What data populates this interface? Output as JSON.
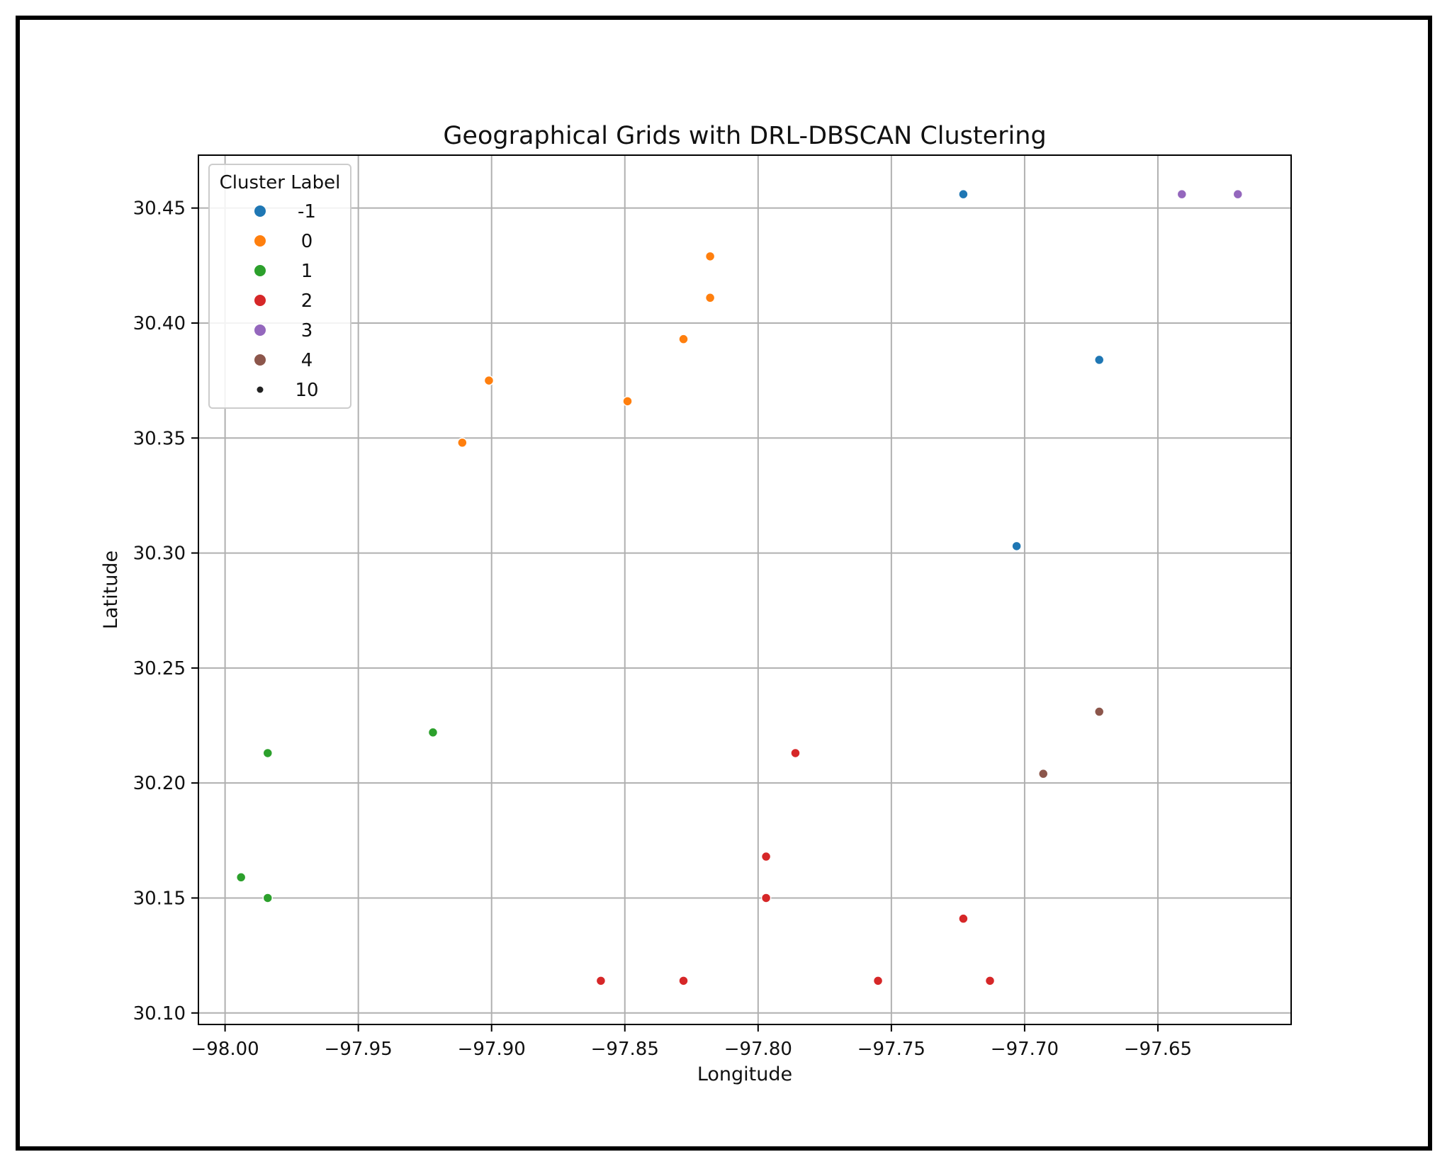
{
  "chart_data": {
    "type": "scatter",
    "title": "Geographical Grids with DRL-DBSCAN Clustering",
    "xlabel": "Longitude",
    "ylabel": "Latitude",
    "xlim": [
      -98.01,
      -97.6
    ],
    "ylim": [
      30.095,
      30.473
    ],
    "xticks": [
      -98.0,
      -97.95,
      -97.9,
      -97.85,
      -97.8,
      -97.75,
      -97.7,
      -97.65
    ],
    "xtick_labels": [
      "−98.00",
      "−97.95",
      "−97.90",
      "−97.85",
      "−97.80",
      "−97.75",
      "−97.70",
      "−97.65"
    ],
    "yticks": [
      30.1,
      30.15,
      30.2,
      30.25,
      30.3,
      30.35,
      30.4,
      30.45
    ],
    "ytick_labels": [
      "30.10",
      "30.15",
      "30.20",
      "30.25",
      "30.30",
      "30.35",
      "30.40",
      "30.45"
    ],
    "grid": true,
    "legend": {
      "title": "Cluster Label",
      "placement": "top-left",
      "entries": [
        {
          "label": "-1",
          "color": "#1f77b4"
        },
        {
          "label": "0",
          "color": "#ff7f0e"
        },
        {
          "label": "1",
          "color": "#2ca02c"
        },
        {
          "label": "2",
          "color": "#d62728"
        },
        {
          "label": "3",
          "color": "#9467bd"
        },
        {
          "label": "4",
          "color": "#8c564b"
        },
        {
          "label": "10",
          "color": "#222222",
          "size_marker": true
        }
      ]
    },
    "series": [
      {
        "name": "-1",
        "color": "#1f77b4",
        "points": [
          [
            -97.723,
            30.456
          ],
          [
            -97.672,
            30.384
          ],
          [
            -97.703,
            30.303
          ]
        ]
      },
      {
        "name": "0",
        "color": "#ff7f0e",
        "points": [
          [
            -97.818,
            30.429
          ],
          [
            -97.818,
            30.411
          ],
          [
            -97.828,
            30.393
          ],
          [
            -97.901,
            30.375
          ],
          [
            -97.849,
            30.366
          ],
          [
            -97.911,
            30.348
          ]
        ]
      },
      {
        "name": "1",
        "color": "#2ca02c",
        "points": [
          [
            -97.922,
            30.222
          ],
          [
            -97.984,
            30.213
          ],
          [
            -97.994,
            30.159
          ],
          [
            -97.984,
            30.15
          ]
        ]
      },
      {
        "name": "2",
        "color": "#d62728",
        "points": [
          [
            -97.786,
            30.213
          ],
          [
            -97.797,
            30.168
          ],
          [
            -97.797,
            30.15
          ],
          [
            -97.723,
            30.141
          ],
          [
            -97.859,
            30.114
          ],
          [
            -97.828,
            30.114
          ],
          [
            -97.755,
            30.114
          ],
          [
            -97.713,
            30.114
          ]
        ]
      },
      {
        "name": "3",
        "color": "#9467bd",
        "points": [
          [
            -97.641,
            30.456
          ],
          [
            -97.62,
            30.456
          ]
        ]
      },
      {
        "name": "4",
        "color": "#8c564b",
        "points": [
          [
            -97.672,
            30.231
          ],
          [
            -97.693,
            30.204
          ]
        ]
      }
    ]
  }
}
